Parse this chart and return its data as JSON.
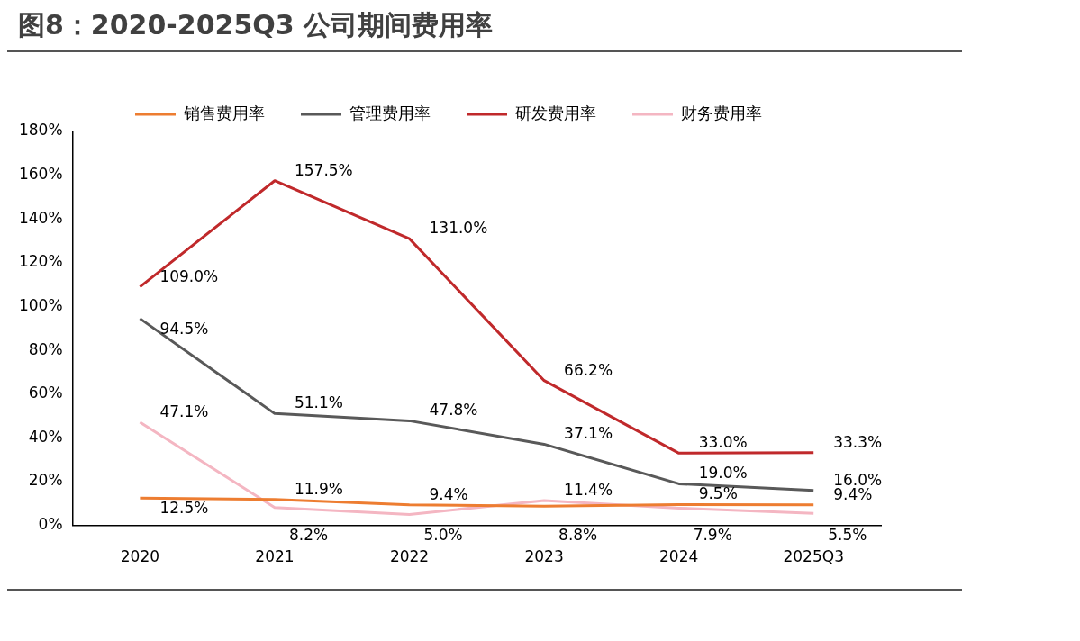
{
  "chart_data": {
    "type": "line",
    "title": "图8：2020-2025Q3 公司期间费用率",
    "categories": [
      "2020",
      "2021",
      "2022",
      "2023",
      "2024",
      "2025Q3"
    ],
    "series": [
      {
        "name": "销售费用率",
        "color": "#ed7d31",
        "values": [
          12.5,
          11.9,
          9.4,
          8.8,
          9.5,
          9.4
        ],
        "value_labels": [
          "12.5%",
          "11.9%",
          "9.4%",
          "8.8%",
          "9.5%",
          "9.4%"
        ]
      },
      {
        "name": "管理费用率",
        "color": "#595959",
        "values": [
          94.5,
          51.1,
          47.8,
          37.1,
          19.0,
          16.0
        ],
        "value_labels": [
          "94.5%",
          "51.1%",
          "47.8%",
          "37.1%",
          "19.0%",
          "16.0%"
        ]
      },
      {
        "name": "研发费用率",
        "color": "#c0292b",
        "values": [
          109.0,
          157.5,
          131.0,
          66.2,
          33.0,
          33.3
        ],
        "value_labels": [
          "109.0%",
          "157.5%",
          "131.0%",
          "66.2%",
          "33.0%",
          "33.3%"
        ]
      },
      {
        "name": "财务费用率",
        "color": "#f4b6c2",
        "values": [
          47.1,
          8.2,
          5.0,
          11.4,
          7.9,
          5.5
        ],
        "value_labels": [
          "47.1%",
          "8.2%",
          "5.0%",
          "11.4%",
          "7.9%",
          "5.5%"
        ]
      }
    ],
    "ylim": [
      0,
      180
    ],
    "yticks": [
      {
        "value": 0,
        "label": "0%"
      },
      {
        "value": 20,
        "label": "20%"
      },
      {
        "value": 40,
        "label": "40%"
      },
      {
        "value": 60,
        "label": "60%"
      },
      {
        "value": 80,
        "label": "80%"
      },
      {
        "value": 100,
        "label": "100%"
      },
      {
        "value": 120,
        "label": "120%"
      },
      {
        "value": 140,
        "label": "140%"
      },
      {
        "value": 160,
        "label": "160%"
      },
      {
        "value": 180,
        "label": "180%"
      }
    ],
    "grid": false,
    "legend": "top",
    "marker": "none",
    "line_style": "solid"
  }
}
